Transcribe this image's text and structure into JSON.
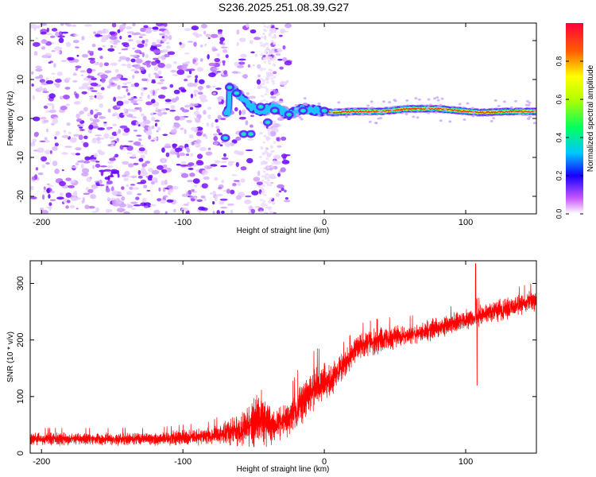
{
  "title": "S236.2025.251.08.39.G27",
  "chart_data": [
    {
      "type": "heatmap",
      "title": "S236.2025.251.08.39.G27",
      "xlabel": "Height of straight line (km)",
      "ylabel": "Frequency (Hz)",
      "xlim": [
        -208,
        150
      ],
      "ylim": [
        -24.5,
        24.5
      ],
      "xticks": [
        -200,
        -100,
        0,
        100
      ],
      "yticks": [
        -20,
        -10,
        0,
        10,
        20
      ],
      "colorbar": {
        "label": "Normalized spectral amplitude",
        "range": [
          0,
          1
        ],
        "ticks": [
          "0.0",
          "0.2",
          "0.4",
          "0.6",
          "0.8"
        ]
      },
      "description_points": {
        "noise_region_x": [
          -208,
          -35
        ],
        "tone_track": [
          {
            "x": -67,
            "y": 8
          },
          {
            "x": -60,
            "y": 6
          },
          {
            "x": -52,
            "y": 3
          },
          {
            "x": -45,
            "y": 2
          },
          {
            "x": -35,
            "y": 3
          },
          {
            "x": -25,
            "y": 1
          },
          {
            "x": -15,
            "y": 2.5
          },
          {
            "x": -5,
            "y": 2
          },
          {
            "x": 5,
            "y": 1.5
          },
          {
            "x": 20,
            "y": 1.8
          },
          {
            "x": 40,
            "y": 1.8
          },
          {
            "x": 60,
            "y": 2.5
          },
          {
            "x": 80,
            "y": 2.5
          },
          {
            "x": 95,
            "y": 2
          },
          {
            "x": 110,
            "y": 1.5
          },
          {
            "x": 130,
            "y": 1.8
          },
          {
            "x": 150,
            "y": 1.8
          }
        ]
      }
    },
    {
      "type": "line",
      "xlabel": "Height of straight line (km)",
      "ylabel": "SNR (10 * v/v)",
      "xlim": [
        -208,
        150
      ],
      "ylim": [
        0,
        340
      ],
      "xticks": [
        -200,
        -100,
        0,
        100
      ],
      "yticks": [
        0,
        100,
        200,
        300
      ],
      "color": "#ff0000",
      "envelope": {
        "x": [
          -208,
          -120,
          -80,
          -60,
          -45,
          -35,
          -25,
          -15,
          -5,
          5,
          15,
          25,
          40,
          60,
          80,
          100,
          120,
          150
        ],
        "mean": [
          25,
          25,
          30,
          40,
          60,
          50,
          60,
          90,
          120,
          130,
          160,
          190,
          200,
          210,
          220,
          235,
          250,
          270
        ],
        "spread": [
          15,
          15,
          20,
          40,
          70,
          40,
          40,
          60,
          50,
          40,
          30,
          30,
          30,
          25,
          25,
          25,
          25,
          25
        ]
      },
      "features": [
        {
          "x": 107,
          "y": 335,
          "label": "spike"
        },
        {
          "x": 108,
          "y": 120,
          "label": "dip"
        }
      ]
    }
  ]
}
